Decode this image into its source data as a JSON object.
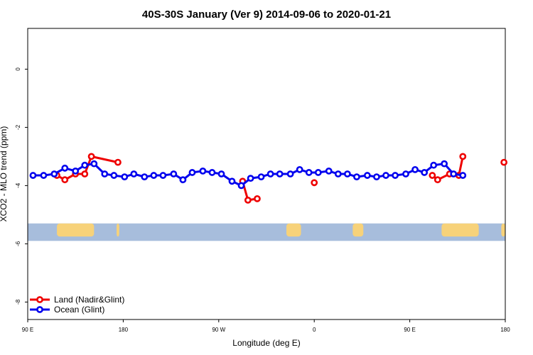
{
  "chart_data": {
    "type": "line",
    "title": "40S-30S January (Ver 9)   2014-09-06 to 2020-01-21",
    "xlabel": "Longitude (deg E)",
    "ylabel": "XCO2 - MLO trend (ppm)",
    "xlim": [
      90,
      450
    ],
    "ylim": [
      -8.6,
      1.4
    ],
    "x_ticks": [
      {
        "value": 90,
        "label": "90 E"
      },
      {
        "value": 162,
        "label": "180"
      },
      {
        "value": 234,
        "label": "90 W"
      },
      {
        "value": 306,
        "label": "0"
      },
      {
        "value": 378,
        "label": "90 E"
      },
      {
        "value": 450,
        "label": "180"
      }
    ],
    "y_ticks": [
      {
        "value": 0,
        "label": "0"
      },
      {
        "value": -2,
        "label": "-2"
      },
      {
        "value": -4,
        "label": "-4"
      },
      {
        "value": -6,
        "label": "-6"
      },
      {
        "value": -8,
        "label": "-8"
      }
    ],
    "grid": false,
    "legend_position": "bottom-left",
    "series": [
      {
        "name": "Land (Nadir&Glint)",
        "color": "#ee0000",
        "segments": [
          [
            [
              112,
              -3.65
            ],
            [
              118,
              -3.8
            ],
            [
              126,
              -3.6
            ],
            [
              133,
              -3.6
            ],
            [
              138,
              -3.0
            ],
            [
              158,
              -3.2
            ]
          ],
          [
            [
              252,
              -3.85
            ],
            [
              256,
              -4.5
            ],
            [
              263,
              -4.45
            ]
          ],
          [
            [
              306,
              -3.9
            ]
          ],
          [
            [
              395,
              -3.65
            ],
            [
              399,
              -3.8
            ],
            [
              408,
              -3.6
            ],
            [
              415,
              -3.65
            ],
            [
              418,
              -3.0
            ]
          ],
          [
            [
              449,
              -3.2
            ]
          ]
        ]
      },
      {
        "name": "Ocean (Glint)",
        "color": "#0000ee",
        "segments": [
          [
            [
              94,
              -3.65
            ],
            [
              102,
              -3.65
            ],
            [
              110,
              -3.6
            ],
            [
              118,
              -3.4
            ],
            [
              126,
              -3.5
            ],
            [
              133,
              -3.3
            ],
            [
              140,
              -3.25
            ],
            [
              148,
              -3.6
            ],
            [
              155,
              -3.65
            ],
            [
              163,
              -3.7
            ],
            [
              170,
              -3.6
            ],
            [
              178,
              -3.7
            ],
            [
              185,
              -3.65
            ],
            [
              192,
              -3.65
            ],
            [
              200,
              -3.6
            ],
            [
              207,
              -3.8
            ],
            [
              214,
              -3.55
            ],
            [
              222,
              -3.5
            ],
            [
              229,
              -3.55
            ],
            [
              236,
              -3.6
            ],
            [
              244,
              -3.85
            ],
            [
              251,
              -4.0
            ],
            [
              258,
              -3.75
            ],
            [
              266,
              -3.7
            ],
            [
              273,
              -3.6
            ],
            [
              280,
              -3.6
            ],
            [
              288,
              -3.6
            ],
            [
              295,
              -3.45
            ],
            [
              302,
              -3.55
            ],
            [
              309,
              -3.55
            ],
            [
              317,
              -3.5
            ],
            [
              324,
              -3.6
            ],
            [
              331,
              -3.6
            ],
            [
              338,
              -3.7
            ],
            [
              346,
              -3.65
            ],
            [
              353,
              -3.7
            ],
            [
              360,
              -3.65
            ],
            [
              367,
              -3.65
            ],
            [
              375,
              -3.6
            ],
            [
              382,
              -3.45
            ],
            [
              389,
              -3.55
            ],
            [
              396,
              -3.3
            ],
            [
              404,
              -3.25
            ],
            [
              411,
              -3.6
            ],
            [
              418,
              -3.65
            ]
          ]
        ]
      }
    ],
    "map_strip": {
      "y_range": [
        -5.9,
        -5.3
      ],
      "ocean_color": "#a7bddc",
      "land_color": "#f7d27a",
      "land_regions": [
        {
          "name": "Australia",
          "x_range": [
            112,
            140
          ]
        },
        {
          "name": "New Zealand",
          "x_range": [
            157,
            159
          ]
        },
        {
          "name": "South America",
          "x_range": [
            285,
            296
          ]
        },
        {
          "name": "Africa",
          "x_range": [
            335,
            343
          ]
        },
        {
          "name": "Australia",
          "x_range": [
            402,
            430
          ]
        },
        {
          "name": "New Zealand",
          "x_range": [
            447,
            450
          ]
        }
      ]
    }
  }
}
